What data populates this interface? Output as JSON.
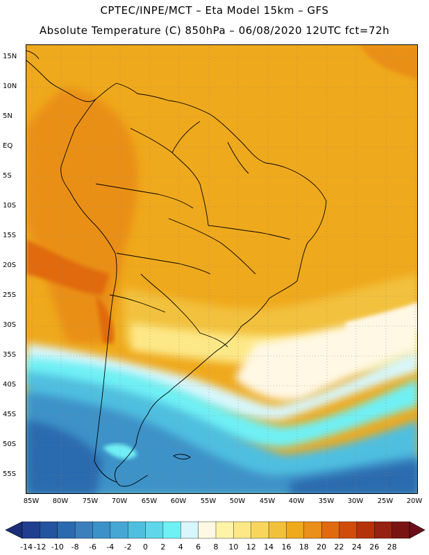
{
  "title": {
    "line1": "CPTEC/INPE/MCT –  Eta Model 15km – GFS",
    "line2": "Absolute Temperature (C) 850hPa – 06/08/2020 12UTC fct=72h"
  },
  "axes": {
    "lat_labels": [
      "15N",
      "10N",
      "5N",
      "EQ",
      "5S",
      "10S",
      "15S",
      "20S",
      "25S",
      "30S",
      "35S",
      "40S",
      "45S",
      "50S",
      "55S"
    ],
    "lon_labels": [
      "85W",
      "80W",
      "75W",
      "70W",
      "65W",
      "60W",
      "55W",
      "50W",
      "45W",
      "40W",
      "35W",
      "30W",
      "25W",
      "20W"
    ]
  },
  "colorbar": {
    "labels": [
      "-14",
      "-12",
      "-10",
      "-8",
      "-6",
      "-4",
      "-2",
      "0",
      "2",
      "4",
      "6",
      "8",
      "10",
      "12",
      "14",
      "16",
      "18",
      "20",
      "22",
      "24",
      "26",
      "28"
    ],
    "colors": [
      "#1f3e8f",
      "#24549e",
      "#2b6aae",
      "#3b7fbd",
      "#3c92c8",
      "#46a6d4",
      "#4fbfe0",
      "#5fd6ea",
      "#6ff0f5",
      "#d8f6fb",
      "#fff8e4",
      "#fff3a8",
      "#fde887",
      "#f8d65e",
      "#f2c13c",
      "#efa91c",
      "#ea8f17",
      "#e06a0e",
      "#d04c0a",
      "#b5330b",
      "#962211",
      "#7a1414"
    ],
    "under_color": "#1a2f78",
    "over_color": "#6b0f1a"
  },
  "field": {
    "description_free": true,
    "colors": {
      "hot_band": "#efa91c",
      "warm": "#f2c13c",
      "mild": "#fde887",
      "cream": "#fff8e4",
      "pale_cyan": "#d8f6fb",
      "cyan": "#6ff0f5",
      "light_blue": "#4fbfe0",
      "mid_blue": "#3c92c8",
      "deep_blue": "#2b6aae",
      "orange": "#ea8f17",
      "dark_orange": "#e06a0e"
    }
  }
}
